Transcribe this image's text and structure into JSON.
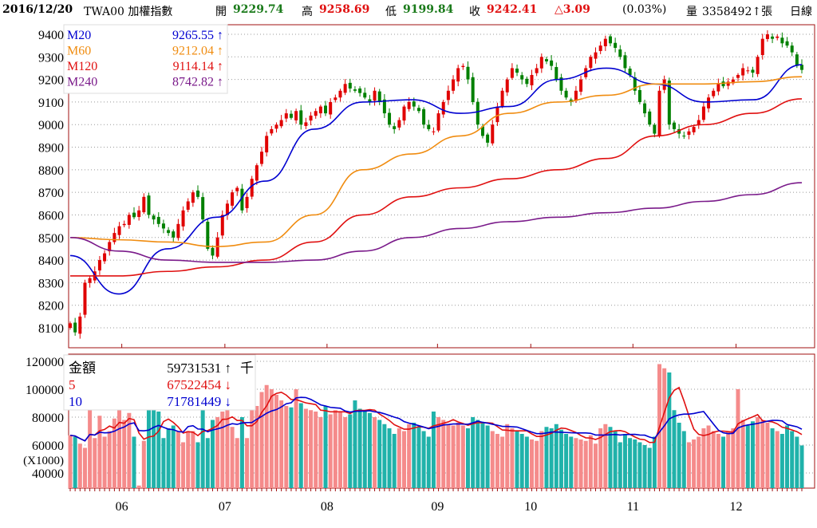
{
  "header": {
    "date": "2016/12/20",
    "symbol": "TWA00 加權指數",
    "open_label": "開",
    "open": "9229.74",
    "high_label": "高",
    "high": "9258.69",
    "low_label": "低",
    "low": "9199.84",
    "close_label": "收",
    "close": "9242.41",
    "change": "△3.09",
    "change_pct": "(0.03%)",
    "volume_label": "量",
    "volume": "3358492↑張",
    "period": "日線"
  },
  "colors": {
    "up": "#e00000",
    "down": "#008000",
    "vol_up": "#f58b8b",
    "vol_down": "#20b2aa",
    "m20": "#0000d0",
    "m60": "#f08c10",
    "m120": "#e01010",
    "m240": "#7a1a8a",
    "frame": "#a01010"
  },
  "chart_data": [
    {
      "type": "candlestick",
      "title": "TWA00 加權指數 日線",
      "ylim": [
        8050,
        9450
      ],
      "yticks": [
        8100,
        8200,
        8300,
        8400,
        8500,
        8600,
        8700,
        8800,
        8900,
        9000,
        9100,
        9200,
        9300,
        9400
      ],
      "month_labels": [
        {
          "label": "06",
          "day": 10.5
        },
        {
          "label": "07",
          "day": 31.5
        },
        {
          "label": "08",
          "day": 52.3
        },
        {
          "label": "09",
          "day": 74.8
        },
        {
          "label": "10",
          "day": 93.8
        },
        {
          "label": "11",
          "day": 114.6
        },
        {
          "label": "12",
          "day": 135.6
        }
      ],
      "closes": [
        8120,
        8080,
        8150,
        8300,
        8320,
        8350,
        8400,
        8430,
        8480,
        8520,
        8550,
        8560,
        8600,
        8590,
        8620,
        8680,
        8600,
        8580,
        8560,
        8540,
        8520,
        8500,
        8560,
        8620,
        8660,
        8700,
        8680,
        8580,
        8450,
        8420,
        8500,
        8600,
        8650,
        8700,
        8720,
        8620,
        8680,
        8760,
        8820,
        8880,
        8950,
        8980,
        9000,
        9020,
        9050,
        9030,
        9060,
        9000,
        9010,
        9040,
        9060,
        9080,
        9050,
        9100,
        9120,
        9150,
        9180,
        9160,
        9150,
        9140,
        9120,
        9100,
        9150,
        9100,
        9050,
        9000,
        8980,
        9020,
        9080,
        9100,
        9080,
        9060,
        9000,
        8980,
        8970,
        9050,
        9100,
        9150,
        9200,
        9250,
        9260,
        9200,
        9100,
        9000,
        8950,
        8920,
        9000,
        9080,
        9150,
        9200,
        9250,
        9230,
        9200,
        9180,
        9220,
        9250,
        9300,
        9280,
        9260,
        9200,
        9150,
        9120,
        9100,
        9150,
        9200,
        9250,
        9300,
        9320,
        9350,
        9380,
        9360,
        9340,
        9300,
        9250,
        9220,
        9150,
        9100,
        9050,
        9000,
        8960,
        9150,
        9200,
        9000,
        8980,
        8960,
        8950,
        8970,
        8990,
        9020,
        9080,
        9120,
        9150,
        9180,
        9170,
        9190,
        9200,
        9220,
        9250,
        9240,
        9230,
        9300,
        9380,
        9400,
        9380,
        9390,
        9360,
        9350,
        9320,
        9260,
        9242.41
      ],
      "moving_averages": [
        {
          "name": "M20",
          "value": "9265.55",
          "arrow": "↑",
          "points": [
            8420,
            8250,
            8450,
            8590,
            8750,
            8980,
            9100,
            9110,
            9050,
            9080,
            9200,
            9250,
            9180,
            9100,
            9110,
            9265.55
          ]
        },
        {
          "name": "M60",
          "value": "9212.04",
          "arrow": "↑",
          "points": [
            8500,
            8490,
            8480,
            8460,
            8480,
            8600,
            8800,
            8870,
            8950,
            9050,
            9100,
            9130,
            9180,
            9180,
            9190,
            9212.04
          ]
        },
        {
          "name": "M120",
          "value": "9114.14",
          "arrow": "↑",
          "points": [
            8330,
            8330,
            8350,
            8370,
            8400,
            8480,
            8600,
            8680,
            8720,
            8760,
            8800,
            8850,
            8950,
            9000,
            9050,
            9114.14
          ]
        },
        {
          "name": "M240",
          "value": "8742.82",
          "arrow": "↑",
          "points": [
            8500,
            8440,
            8400,
            8390,
            8390,
            8400,
            8440,
            8500,
            8540,
            8570,
            8590,
            8610,
            8630,
            8660,
            8690,
            8742.82
          ]
        }
      ]
    },
    {
      "type": "bar",
      "title": "金額",
      "ylim": [
        28000,
        124000
      ],
      "yticks": [
        40000,
        60000,
        80000,
        100000,
        120000
      ],
      "unit_label": "(X1000)",
      "legend": [
        {
          "name": "金額",
          "value": "59731531",
          "arrow": "↑",
          "unit": "千"
        },
        {
          "name": "5",
          "value": "67522454",
          "arrow": "↓"
        },
        {
          "name": "10",
          "value": "71781449",
          "arrow": "↓"
        }
      ],
      "values": [
        67000,
        66000,
        61000,
        58000,
        86000,
        65000,
        81000,
        66000,
        70000,
        79000,
        85000,
        78000,
        83000,
        66000,
        31000,
        63000,
        86000,
        86000,
        84000,
        65000,
        72000,
        74000,
        70000,
        62000,
        70000,
        70000,
        62000,
        85000,
        65000,
        78000,
        80000,
        84000,
        86000,
        73000,
        65000,
        80000,
        65000,
        86000,
        88000,
        98000,
        103000,
        100000,
        96000,
        92000,
        88000,
        87000,
        100000,
        90000,
        86000,
        85000,
        84000,
        80000,
        88000,
        82000,
        85000,
        84000,
        80000,
        82000,
        92000,
        86000,
        84000,
        83000,
        80000,
        78000,
        75000,
        72000,
        68000,
        72000,
        70000,
        75000,
        76000,
        73000,
        70000,
        66000,
        84000,
        80000,
        78000,
        75000,
        74000,
        76000,
        74000,
        72000,
        80000,
        78000,
        76000,
        74000,
        70000,
        68000,
        66000,
        75000,
        72000,
        70000,
        68000,
        66000,
        64000,
        63000,
        70000,
        73000,
        72000,
        75000,
        71000,
        68000,
        66000,
        65000,
        64000,
        63000,
        67000,
        61000,
        72000,
        75000,
        73000,
        70000,
        62000,
        68000,
        65000,
        64000,
        62000,
        60000,
        58000,
        66000,
        118000,
        115000,
        112000,
        85000,
        76000,
        70000,
        62000,
        64000,
        66000,
        72000,
        74000,
        70000,
        68000,
        66000,
        70000,
        72000,
        100000,
        78000,
        74000,
        77000,
        80000,
        78000,
        76000,
        72000,
        70000,
        68000,
        74000,
        70000,
        66000,
        59731
      ]
    }
  ]
}
